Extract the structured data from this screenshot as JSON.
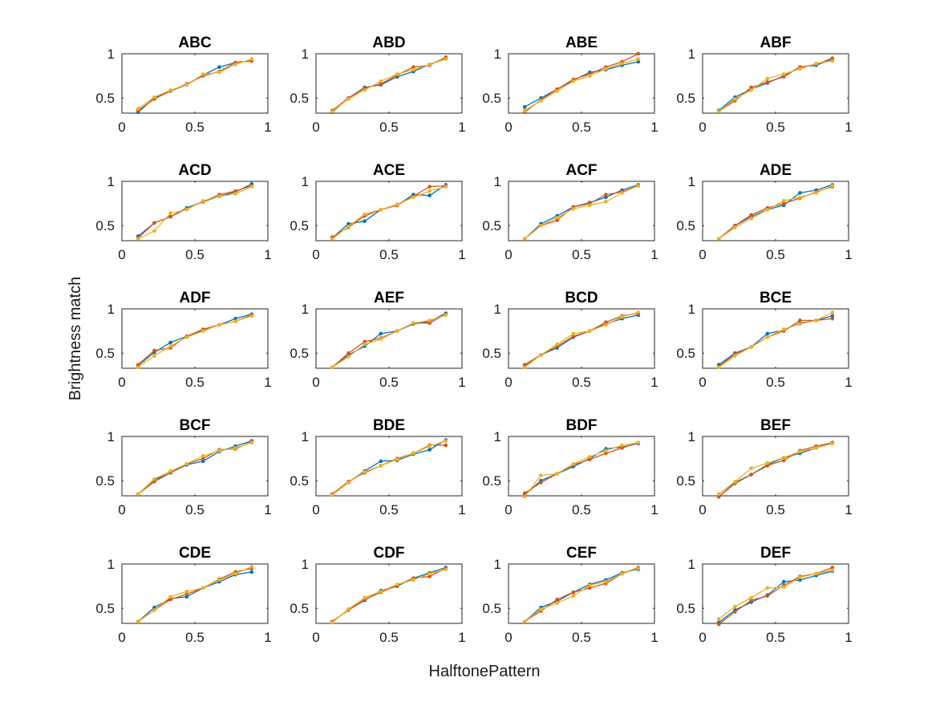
{
  "chart_data": {
    "type": "line",
    "layout": "5x4 grid of small multiples",
    "xlabel": "HalftonePattern",
    "ylabel": "Brightness match",
    "xlim": [
      0,
      1
    ],
    "ylim": [
      0.33,
      1.0
    ],
    "xticks": [
      0,
      0.5,
      1
    ],
    "xtick_labels": [
      "0",
      "0.5",
      "1"
    ],
    "yticks": [
      0.5,
      1
    ],
    "ytick_labels": [
      "0.5",
      "1"
    ],
    "grid": false,
    "legend": "none",
    "series_colors": [
      "#0072BD",
      "#D95319",
      "#EDB120"
    ],
    "x": [
      0.111,
      0.222,
      0.333,
      0.444,
      0.556,
      0.667,
      0.778,
      0.889
    ],
    "panels": [
      {
        "title": "ABC",
        "series": [
          {
            "values": [
              0.34,
              0.5,
              0.58,
              0.65,
              0.76,
              0.85,
              0.9,
              0.92
            ]
          },
          {
            "values": [
              0.36,
              0.49,
              0.58,
              0.66,
              0.75,
              0.8,
              0.9,
              0.92
            ]
          },
          {
            "values": [
              0.38,
              0.51,
              0.59,
              0.65,
              0.77,
              0.79,
              0.88,
              0.94
            ]
          }
        ]
      },
      {
        "title": "ABD",
        "series": [
          {
            "values": [
              0.34,
              0.5,
              0.62,
              0.65,
              0.74,
              0.8,
              0.88,
              0.95
            ]
          },
          {
            "values": [
              0.36,
              0.5,
              0.61,
              0.66,
              0.76,
              0.85,
              0.87,
              0.96
            ]
          },
          {
            "values": [
              0.35,
              0.49,
              0.59,
              0.69,
              0.77,
              0.82,
              0.88,
              0.94
            ]
          }
        ]
      },
      {
        "title": "ABE",
        "series": [
          {
            "values": [
              0.4,
              0.5,
              0.6,
              0.7,
              0.79,
              0.82,
              0.87,
              0.91
            ]
          },
          {
            "values": [
              0.34,
              0.48,
              0.6,
              0.71,
              0.77,
              0.85,
              0.91,
              1.0
            ]
          },
          {
            "values": [
              0.36,
              0.47,
              0.58,
              0.69,
              0.75,
              0.83,
              0.89,
              0.94
            ]
          }
        ]
      },
      {
        "title": "ABF",
        "series": [
          {
            "values": [
              0.36,
              0.51,
              0.6,
              0.67,
              0.75,
              0.85,
              0.87,
              0.94
            ]
          },
          {
            "values": [
              0.35,
              0.47,
              0.62,
              0.68,
              0.74,
              0.85,
              0.88,
              0.95
            ]
          },
          {
            "values": [
              0.35,
              0.49,
              0.59,
              0.72,
              0.77,
              0.83,
              0.89,
              0.92
            ]
          }
        ]
      },
      {
        "title": "ACD",
        "series": [
          {
            "values": [
              0.38,
              0.53,
              0.6,
              0.7,
              0.77,
              0.83,
              0.88,
              0.97
            ]
          },
          {
            "values": [
              0.36,
              0.53,
              0.6,
              0.69,
              0.77,
              0.85,
              0.89,
              0.95
            ]
          },
          {
            "values": [
              0.35,
              0.44,
              0.64,
              0.68,
              0.78,
              0.83,
              0.86,
              0.94
            ]
          }
        ]
      },
      {
        "title": "ACE",
        "series": [
          {
            "values": [
              0.36,
              0.52,
              0.55,
              0.68,
              0.73,
              0.85,
              0.84,
              0.96
            ]
          },
          {
            "values": [
              0.37,
              0.48,
              0.61,
              0.68,
              0.73,
              0.83,
              0.94,
              0.95
            ]
          },
          {
            "values": [
              0.35,
              0.49,
              0.63,
              0.68,
              0.74,
              0.82,
              0.89,
              0.94
            ]
          }
        ]
      },
      {
        "title": "ACF",
        "series": [
          {
            "values": [
              0.35,
              0.52,
              0.61,
              0.71,
              0.76,
              0.82,
              0.9,
              0.96
            ]
          },
          {
            "values": [
              0.35,
              0.5,
              0.56,
              0.71,
              0.75,
              0.85,
              0.88,
              0.95
            ]
          },
          {
            "values": [
              0.35,
              0.5,
              0.59,
              0.69,
              0.73,
              0.77,
              0.87,
              0.95
            ]
          }
        ]
      },
      {
        "title": "ADE",
        "series": [
          {
            "values": [
              0.35,
              0.5,
              0.6,
              0.68,
              0.73,
              0.87,
              0.9,
              0.96
            ]
          },
          {
            "values": [
              0.35,
              0.5,
              0.62,
              0.7,
              0.75,
              0.81,
              0.88,
              0.94
            ]
          },
          {
            "values": [
              0.35,
              0.48,
              0.58,
              0.68,
              0.78,
              0.82,
              0.87,
              0.95
            ]
          }
        ]
      },
      {
        "title": "ADF",
        "series": [
          {
            "values": [
              0.36,
              0.51,
              0.62,
              0.69,
              0.76,
              0.82,
              0.89,
              0.94
            ]
          },
          {
            "values": [
              0.37,
              0.53,
              0.56,
              0.69,
              0.77,
              0.82,
              0.86,
              0.93
            ]
          },
          {
            "values": [
              0.34,
              0.47,
              0.58,
              0.68,
              0.75,
              0.82,
              0.86,
              0.92
            ]
          }
        ]
      },
      {
        "title": "AEF",
        "series": [
          {
            "values": [
              0.34,
              0.48,
              0.58,
              0.72,
              0.75,
              0.83,
              0.86,
              0.95
            ]
          },
          {
            "values": [
              0.34,
              0.5,
              0.63,
              0.67,
              0.75,
              0.84,
              0.84,
              0.94
            ]
          },
          {
            "values": [
              0.34,
              0.46,
              0.6,
              0.66,
              0.75,
              0.84,
              0.87,
              0.93
            ]
          }
        ]
      },
      {
        "title": "BCD",
        "series": [
          {
            "values": [
              0.35,
              0.48,
              0.56,
              0.68,
              0.75,
              0.83,
              0.89,
              0.93
            ]
          },
          {
            "values": [
              0.37,
              0.48,
              0.58,
              0.69,
              0.75,
              0.85,
              0.92,
              0.95
            ]
          },
          {
            "values": [
              0.34,
              0.48,
              0.6,
              0.72,
              0.75,
              0.82,
              0.91,
              0.96
            ]
          }
        ]
      },
      {
        "title": "BCE",
        "series": [
          {
            "values": [
              0.37,
              0.5,
              0.57,
              0.72,
              0.76,
              0.84,
              0.87,
              0.92
            ]
          },
          {
            "values": [
              0.35,
              0.49,
              0.57,
              0.68,
              0.75,
              0.87,
              0.87,
              0.89
            ]
          },
          {
            "values": [
              0.34,
              0.47,
              0.57,
              0.68,
              0.77,
              0.83,
              0.87,
              0.96
            ]
          }
        ]
      },
      {
        "title": "BCF",
        "series": [
          {
            "values": [
              0.35,
              0.51,
              0.59,
              0.68,
              0.72,
              0.83,
              0.89,
              0.95
            ]
          },
          {
            "values": [
              0.35,
              0.49,
              0.59,
              0.69,
              0.75,
              0.85,
              0.86,
              0.94
            ]
          },
          {
            "values": [
              0.35,
              0.52,
              0.61,
              0.69,
              0.78,
              0.84,
              0.87,
              0.93
            ]
          }
        ]
      },
      {
        "title": "BDE",
        "series": [
          {
            "values": [
              0.34,
              0.48,
              0.61,
              0.72,
              0.73,
              0.8,
              0.85,
              0.96
            ]
          },
          {
            "values": [
              0.35,
              0.49,
              0.59,
              0.67,
              0.75,
              0.81,
              0.9,
              0.9
            ]
          },
          {
            "values": [
              0.34,
              0.48,
              0.6,
              0.67,
              0.74,
              0.81,
              0.89,
              0.95
            ]
          }
        ]
      },
      {
        "title": "BDF",
        "series": [
          {
            "values": [
              0.34,
              0.5,
              0.58,
              0.66,
              0.75,
              0.86,
              0.88,
              0.92
            ]
          },
          {
            "values": [
              0.36,
              0.48,
              0.58,
              0.68,
              0.74,
              0.81,
              0.87,
              0.93
            ]
          },
          {
            "values": [
              0.32,
              0.56,
              0.58,
              0.69,
              0.77,
              0.84,
              0.9,
              0.93
            ]
          }
        ]
      },
      {
        "title": "BEF",
        "series": [
          {
            "values": [
              0.32,
              0.48,
              0.57,
              0.68,
              0.76,
              0.81,
              0.87,
              0.93
            ]
          },
          {
            "values": [
              0.32,
              0.47,
              0.57,
              0.67,
              0.73,
              0.84,
              0.89,
              0.93
            ]
          },
          {
            "values": [
              0.35,
              0.49,
              0.64,
              0.7,
              0.76,
              0.83,
              0.87,
              0.92
            ]
          }
        ]
      },
      {
        "title": "CDE",
        "series": [
          {
            "values": [
              0.35,
              0.51,
              0.61,
              0.63,
              0.73,
              0.8,
              0.88,
              0.91
            ]
          },
          {
            "values": [
              0.35,
              0.48,
              0.6,
              0.66,
              0.73,
              0.83,
              0.91,
              0.95
            ]
          },
          {
            "values": [
              0.35,
              0.48,
              0.63,
              0.69,
              0.73,
              0.82,
              0.89,
              0.97
            ]
          }
        ]
      },
      {
        "title": "CDF",
        "series": [
          {
            "values": [
              0.35,
              0.48,
              0.59,
              0.7,
              0.75,
              0.84,
              0.9,
              0.96
            ]
          },
          {
            "values": [
              0.35,
              0.48,
              0.6,
              0.68,
              0.76,
              0.84,
              0.86,
              0.95
            ]
          },
          {
            "values": [
              0.34,
              0.49,
              0.62,
              0.69,
              0.77,
              0.82,
              0.89,
              0.94
            ]
          }
        ]
      },
      {
        "title": "CEF",
        "series": [
          {
            "values": [
              0.35,
              0.51,
              0.58,
              0.68,
              0.77,
              0.82,
              0.9,
              0.94
            ]
          },
          {
            "values": [
              0.35,
              0.47,
              0.6,
              0.68,
              0.73,
              0.78,
              0.89,
              0.96
            ]
          },
          {
            "values": [
              0.35,
              0.49,
              0.56,
              0.64,
              0.76,
              0.8,
              0.89,
              0.95
            ]
          }
        ]
      },
      {
        "title": "DEF",
        "series": [
          {
            "values": [
              0.34,
              0.48,
              0.57,
              0.65,
              0.8,
              0.82,
              0.87,
              0.92
            ]
          },
          {
            "values": [
              0.32,
              0.46,
              0.59,
              0.64,
              0.76,
              0.86,
              0.89,
              0.96
            ]
          },
          {
            "values": [
              0.38,
              0.52,
              0.62,
              0.73,
              0.74,
              0.85,
              0.89,
              0.93
            ]
          }
        ]
      }
    ]
  }
}
